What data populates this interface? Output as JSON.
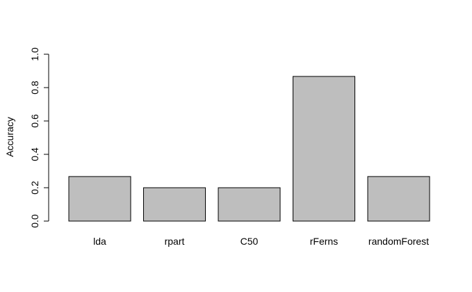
{
  "chart_data": {
    "type": "bar",
    "title": "",
    "xlabel": "",
    "ylabel": "Accuracy",
    "categories": [
      "lda",
      "rpart",
      "C50",
      "rFerns",
      "randomForest"
    ],
    "values": [
      0.267,
      0.2,
      0.2,
      0.867,
      0.267
    ],
    "ylim": [
      0,
      1
    ],
    "yticks": [
      "0.0",
      "0.2",
      "0.4",
      "0.6",
      "0.8",
      "1.0"
    ],
    "grid": false,
    "legend": "none",
    "colors": {
      "bar_fill": "#bebebe",
      "bar_stroke": "#000000",
      "axis": "#000000",
      "background": "#ffffff"
    }
  }
}
